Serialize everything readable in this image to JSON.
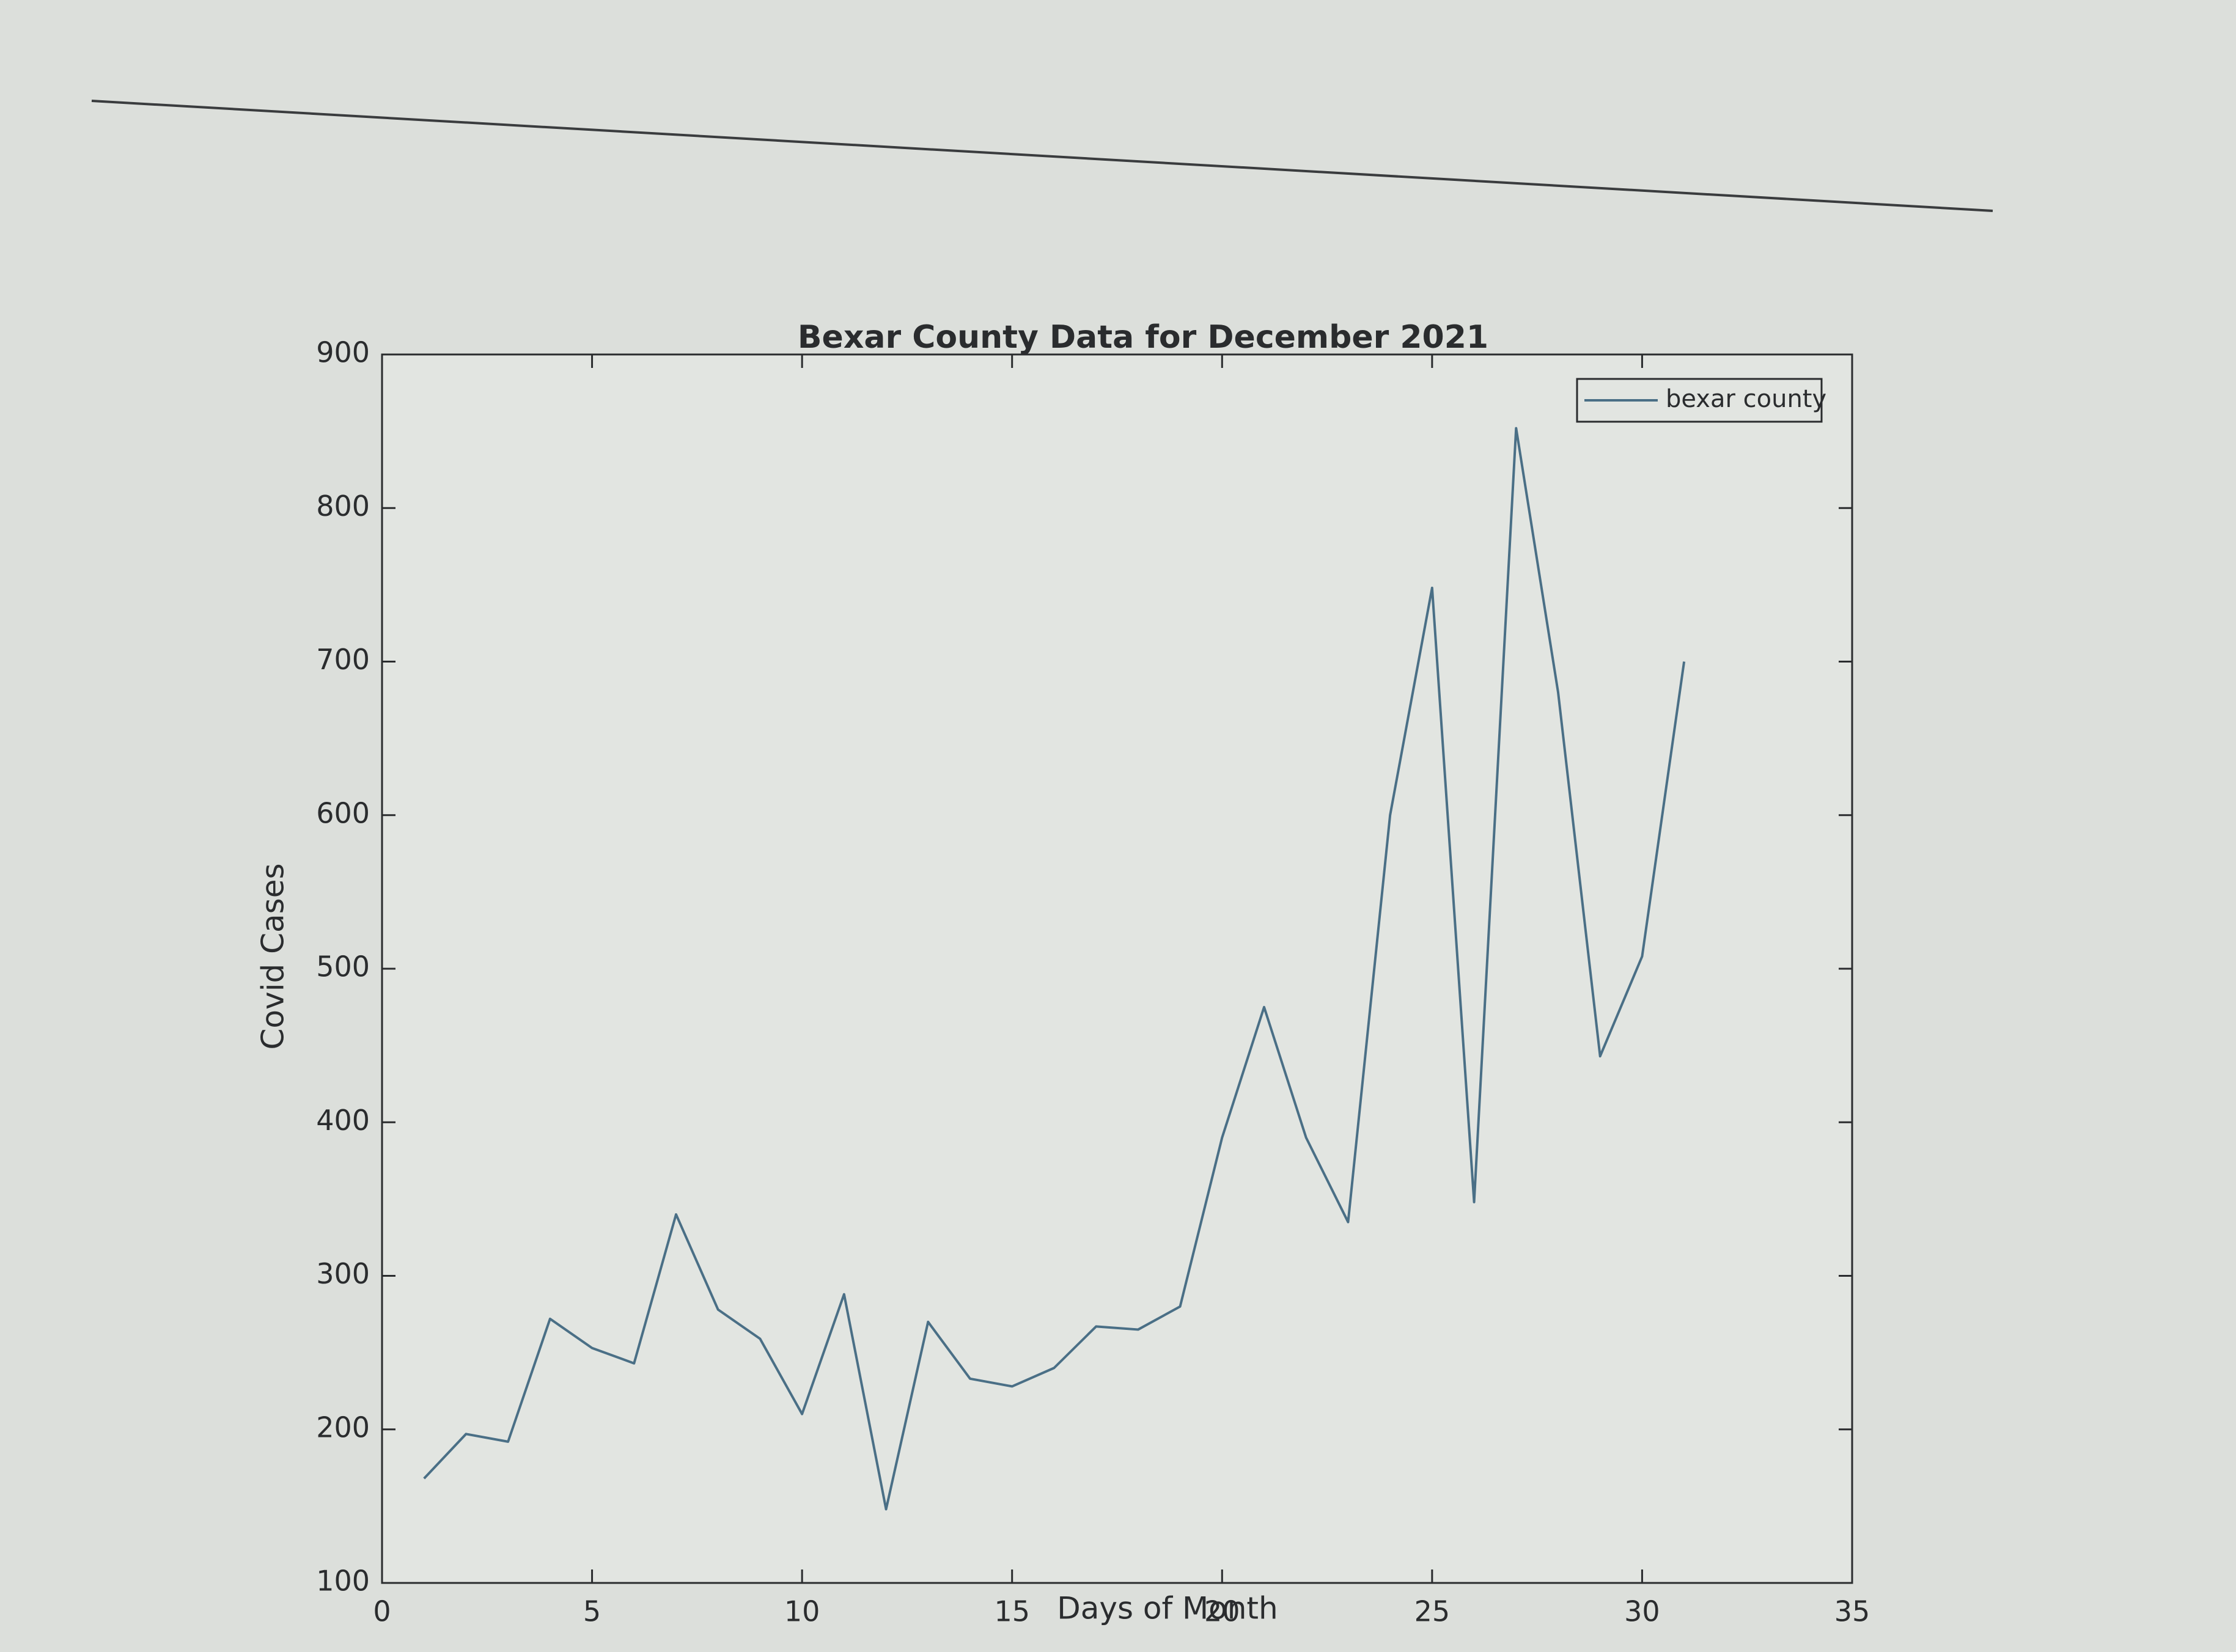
{
  "chart_data": {
    "type": "line",
    "title": "Bexar County Data for December 2021",
    "x_label": "Days of Month",
    "y_label": "Covid Cases",
    "x": [
      1,
      2,
      3,
      4,
      5,
      6,
      7,
      8,
      9,
      10,
      11,
      12,
      13,
      14,
      15,
      16,
      17,
      18,
      19,
      20,
      21,
      22,
      23,
      24,
      25,
      26,
      27,
      28,
      29,
      30,
      31
    ],
    "series": [
      {
        "name": "bexar county",
        "color": "#4a6f86",
        "values": [
          168,
          197,
          192,
          272,
          253,
          243,
          340,
          278,
          259,
          210,
          288,
          148,
          270,
          233,
          228,
          240,
          267,
          265,
          280,
          390,
          475,
          390,
          335,
          600,
          748,
          348,
          852,
          680,
          443,
          508,
          700
        ]
      }
    ],
    "xlim": [
      0,
      35
    ],
    "xticks": [
      0,
      5,
      10,
      15,
      20,
      25,
      30,
      35
    ],
    "ylim": [
      100,
      900
    ],
    "yticks": [
      100,
      200,
      300,
      400,
      500,
      600,
      700,
      800,
      900
    ],
    "legend": "upper right"
  }
}
